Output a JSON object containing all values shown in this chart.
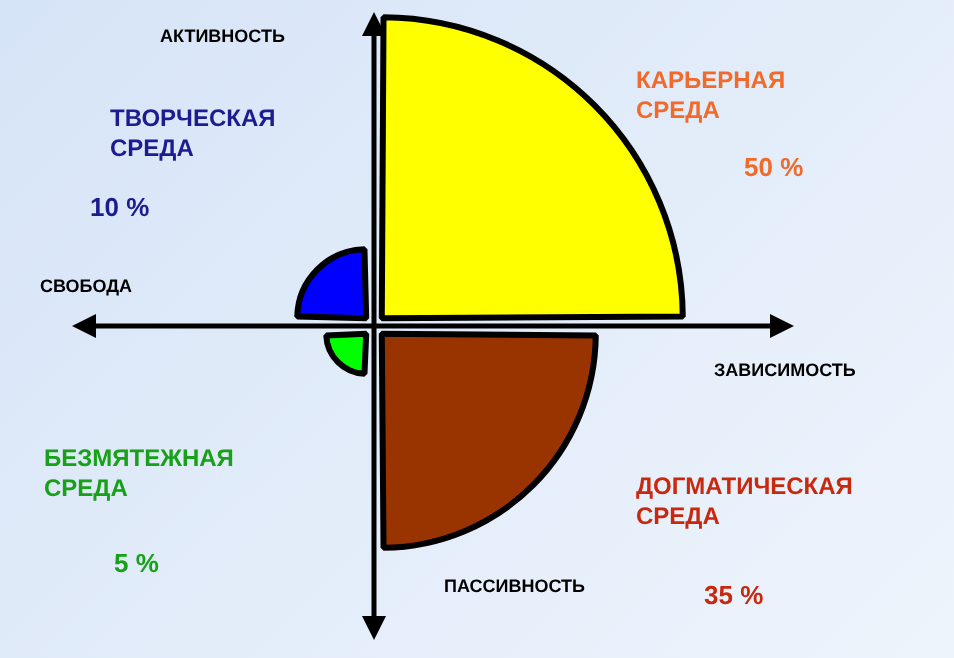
{
  "chart_data": {
    "type": "other",
    "categories": [
      "КАРЬЕРНАЯ СРЕДА",
      "ДОГМАТИЧЕСКАЯ СРЕДА",
      "БЕЗМЯТЕЖНАЯ СРЕДА",
      "ТВОРЧЕСКАЯ СРЕДА"
    ],
    "values": [
      50,
      35,
      5,
      10
    ],
    "colors": [
      "#ffff00",
      "#993300",
      "#00ff00",
      "#0000ff"
    ],
    "value_labels": [
      "50 %",
      "35 %",
      "5 %",
      "10 %"
    ],
    "annotations": [
      "АКТИВНОСТЬ",
      "СВОБОДА",
      "ЗАВИСИМОСТЬ",
      "ПАССИВНОСТЬ"
    ]
  }
}
